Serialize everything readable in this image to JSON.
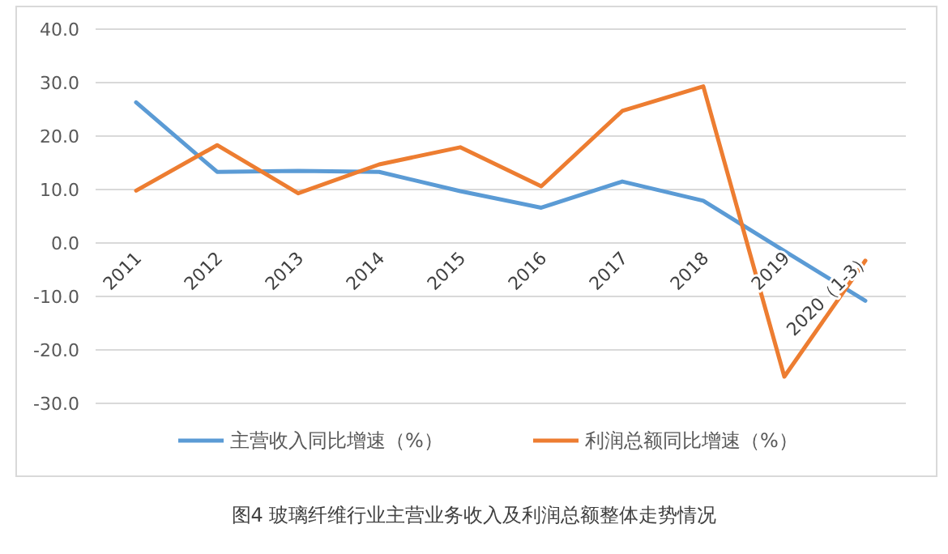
{
  "chart_data": {
    "type": "line",
    "title": "图4 玻璃纤维行业主营业务收入及利润总额整体走势情况",
    "categories": [
      "2011",
      "2012",
      "2013",
      "2014",
      "2015",
      "2016",
      "2017",
      "2018",
      "2019",
      "2020（1-3）"
    ],
    "series": [
      {
        "name": "主营收入同比增速（%）",
        "color": "#5b9bd5",
        "values": [
          26.3,
          13.3,
          13.5,
          13.3,
          9.7,
          6.6,
          11.5,
          7.9,
          -1.5,
          -10.8
        ]
      },
      {
        "name": "利润总额同比增速（%）",
        "color": "#ed7d31",
        "values": [
          9.8,
          18.3,
          9.3,
          14.7,
          17.9,
          10.6,
          24.7,
          29.3,
          -25.0,
          -3.3
        ]
      }
    ],
    "ylim": [
      -30,
      40
    ],
    "yticks": [
      {
        "value": 40,
        "label": "40.0"
      },
      {
        "value": 30,
        "label": "30.0"
      },
      {
        "value": 20,
        "label": "20.0"
      },
      {
        "value": 10,
        "label": "10.0"
      },
      {
        "value": 0,
        "label": "0.0"
      },
      {
        "value": -10,
        "label": "-10.0"
      },
      {
        "value": -20,
        "label": "-20.0"
      },
      {
        "value": -30,
        "label": "-30.0"
      }
    ],
    "grid": "y",
    "legend": "bottom"
  }
}
